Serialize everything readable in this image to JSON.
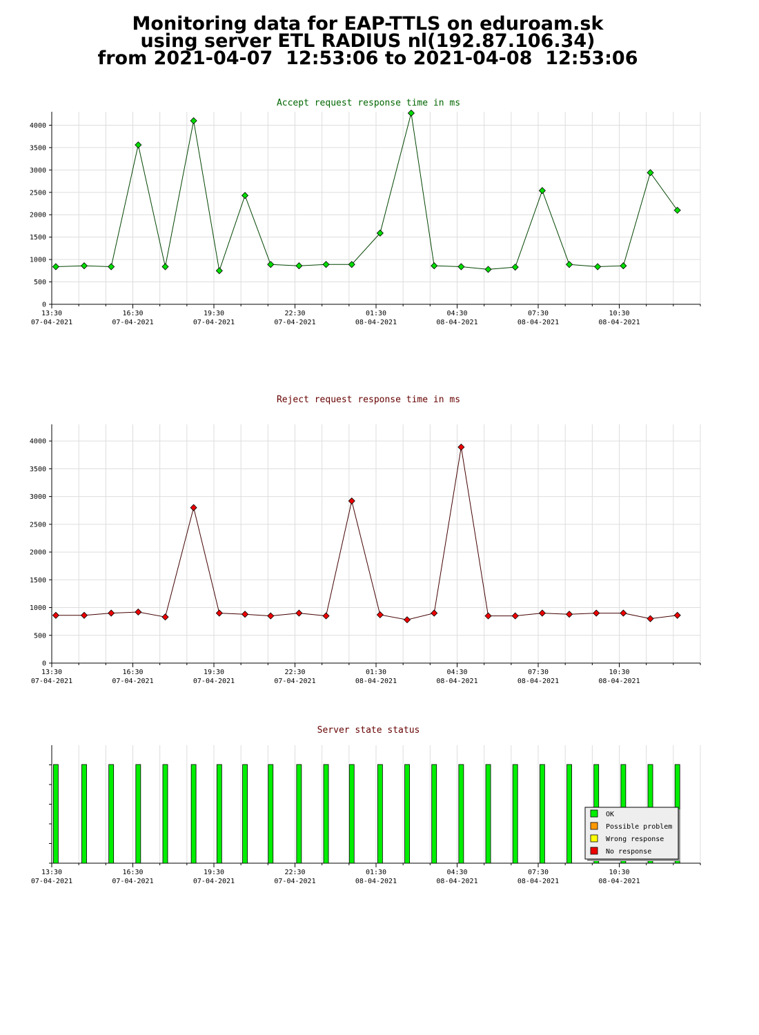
{
  "page": {
    "title_lines": [
      "Monitoring data for EAP-TTLS on eduroam.sk",
      "using server ETL RADIUS nl(192.87.106.34)",
      "from 2021-04-07  12:53:06 to 2021-04-08  12:53:06"
    ]
  },
  "colors": {
    "accept_title": "#006600",
    "reject_title": "#660000",
    "status_title": "#660000",
    "accept_marker": "#00dd00",
    "accept_line": "#004400",
    "reject_marker": "#ee0000",
    "reject_line": "#440000",
    "ok": "#00ee00",
    "possible_problem": "#ff9900",
    "wrong_response": "#ffff00",
    "no_response": "#ee0000",
    "grid": "#dddddd"
  },
  "chart_data": [
    {
      "type": "line",
      "title": "Accept request response time in ms",
      "ylim": [
        0,
        4300
      ],
      "y_ticks": [
        "0",
        "500",
        "1000",
        "1500",
        "2000",
        "2500",
        "3000",
        "3500",
        "4000"
      ],
      "x_tick_labels": [
        [
          "13:30",
          "07-04-2021"
        ],
        [
          "16:30",
          "07-04-2021"
        ],
        [
          "19:30",
          "07-04-2021"
        ],
        [
          "22:30",
          "07-04-2021"
        ],
        [
          "01:30",
          "08-04-2021"
        ],
        [
          "04:30",
          "08-04-2021"
        ],
        [
          "07:30",
          "08-04-2021"
        ],
        [
          "10:30",
          "08-04-2021"
        ]
      ],
      "x_hours": [
        13.65,
        14.7,
        15.7,
        16.7,
        17.7,
        18.75,
        19.7,
        20.65,
        21.6,
        22.65,
        23.65,
        24.6,
        25.65,
        26.8,
        27.65,
        28.65,
        29.65,
        30.65,
        31.65,
        32.65,
        33.7,
        34.65,
        35.65,
        36.65
      ],
      "values": [
        840,
        860,
        840,
        3560,
        840,
        4100,
        750,
        2430,
        890,
        860,
        890,
        890,
        1590,
        4270,
        860,
        840,
        780,
        830,
        2540,
        890,
        840,
        860,
        2940,
        2100
      ],
      "grid": true
    },
    {
      "type": "line",
      "title": "Reject request response time in ms",
      "ylim": [
        0,
        4300
      ],
      "y_ticks": [
        "0",
        "500",
        "1000",
        "1500",
        "2000",
        "2500",
        "3000",
        "3500",
        "4000"
      ],
      "x_tick_labels": [
        [
          "13:30",
          "07-04-2021"
        ],
        [
          "16:30",
          "07-04-2021"
        ],
        [
          "19:30",
          "07-04-2021"
        ],
        [
          "22:30",
          "07-04-2021"
        ],
        [
          "01:30",
          "08-04-2021"
        ],
        [
          "04:30",
          "08-04-2021"
        ],
        [
          "07:30",
          "08-04-2021"
        ],
        [
          "10:30",
          "08-04-2021"
        ]
      ],
      "x_hours": [
        13.65,
        14.7,
        15.7,
        16.7,
        17.7,
        18.75,
        19.7,
        20.65,
        21.6,
        22.65,
        23.65,
        24.6,
        25.65,
        26.65,
        27.65,
        28.65,
        29.65,
        30.65,
        31.65,
        32.65,
        33.65,
        34.65,
        35.65,
        36.65
      ],
      "values": [
        860,
        860,
        900,
        920,
        830,
        2800,
        900,
        880,
        850,
        900,
        850,
        2920,
        870,
        780,
        900,
        3890,
        850,
        850,
        900,
        880,
        900,
        900,
        800,
        860
      ],
      "grid": true
    },
    {
      "type": "bar",
      "title": "Server state status",
      "x_tick_labels": [
        [
          "13:30",
          "07-04-2021"
        ],
        [
          "16:30",
          "07-04-2021"
        ],
        [
          "19:30",
          "07-04-2021"
        ],
        [
          "22:30",
          "07-04-2021"
        ],
        [
          "01:30",
          "08-04-2021"
        ],
        [
          "04:30",
          "08-04-2021"
        ],
        [
          "07:30",
          "08-04-2021"
        ],
        [
          "10:30",
          "08-04-2021"
        ]
      ],
      "x_hours": [
        13.65,
        14.7,
        15.7,
        16.7,
        17.7,
        18.75,
        19.7,
        20.65,
        21.6,
        22.65,
        23.65,
        24.6,
        25.65,
        26.65,
        27.65,
        28.65,
        29.65,
        30.65,
        31.65,
        32.65,
        33.65,
        34.65,
        35.65,
        36.65
      ],
      "states": [
        "OK",
        "OK",
        "OK",
        "OK",
        "OK",
        "OK",
        "OK",
        "OK",
        "OK",
        "OK",
        "OK",
        "OK",
        "OK",
        "OK",
        "OK",
        "OK",
        "OK",
        "OK",
        "OK",
        "OK",
        "OK",
        "OK",
        "OK",
        "OK"
      ],
      "legend": {
        "placement": "bottom-right",
        "entries": [
          "OK",
          "Possible problem",
          "Wrong response",
          "No response"
        ]
      }
    }
  ]
}
